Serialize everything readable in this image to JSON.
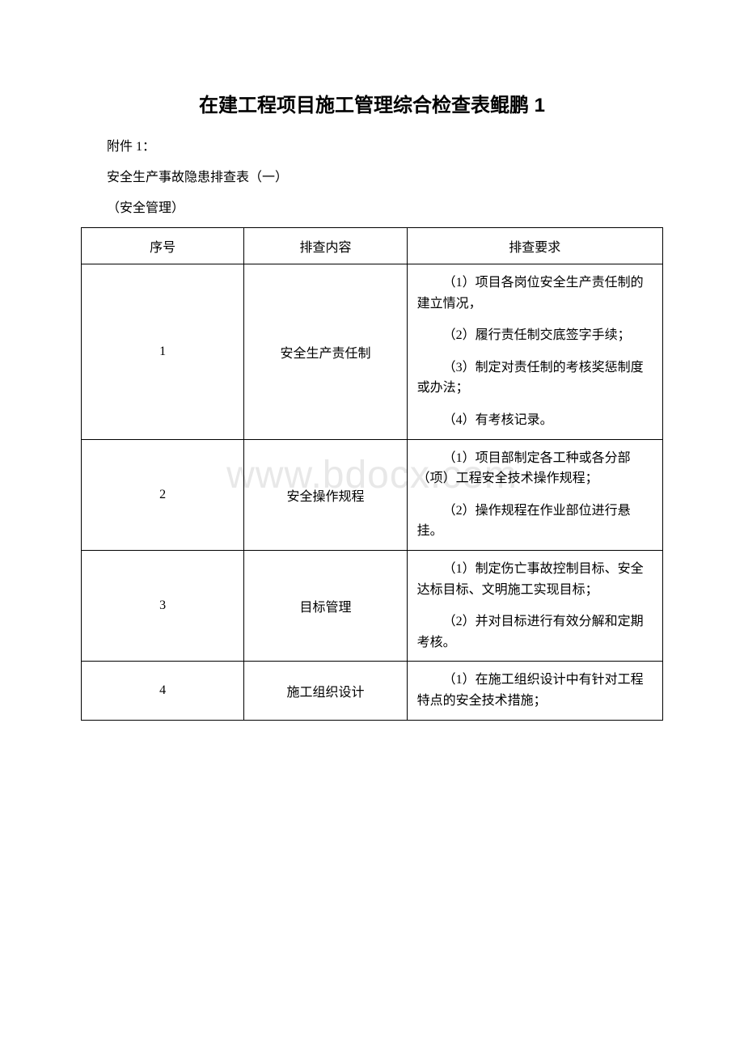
{
  "watermark": "www.bdocx.com",
  "title": "在建工程项目施工管理综合检查表鲲鹏 1",
  "attachment_label": "附件 1：",
  "subtitle": "安全生产事故隐患排查表（一）",
  "category": "（安全管理）",
  "table": {
    "headers": {
      "col1": "序号",
      "col2": "排查内容",
      "col3": "排查要求"
    },
    "rows": [
      {
        "num": "1",
        "content": "安全生产责任制",
        "requirements": [
          "（1）项目各岗位安全生产责任制的建立情况，",
          "（2）履行责任制交底签字手续；",
          "（3）制定对责任制的考核奖惩制度或办法；",
          "（4）有考核记录。"
        ]
      },
      {
        "num": "2",
        "content": "安全操作规程",
        "requirements": [
          "（1）项目部制定各工种或各分部（项）工程安全技术操作规程；",
          "（2）操作规程在作业部位进行悬挂。"
        ]
      },
      {
        "num": "3",
        "content": "目标管理",
        "requirements": [
          "（1）制定伤亡事故控制目标、安全达标目标、文明施工实现目标；",
          "（2）并对目标进行有效分解和定期考核。"
        ]
      },
      {
        "num": "4",
        "content": "施工组织设计",
        "requirements": [
          "（1）在施工组织设计中有针对工程特点的安全技术措施；"
        ]
      }
    ]
  },
  "colors": {
    "background": "#ffffff",
    "text": "#000000",
    "border": "#000000",
    "watermark": "#e8e8e8"
  },
  "typography": {
    "title_fontsize": 24,
    "body_fontsize": 16,
    "watermark_fontsize": 48
  }
}
